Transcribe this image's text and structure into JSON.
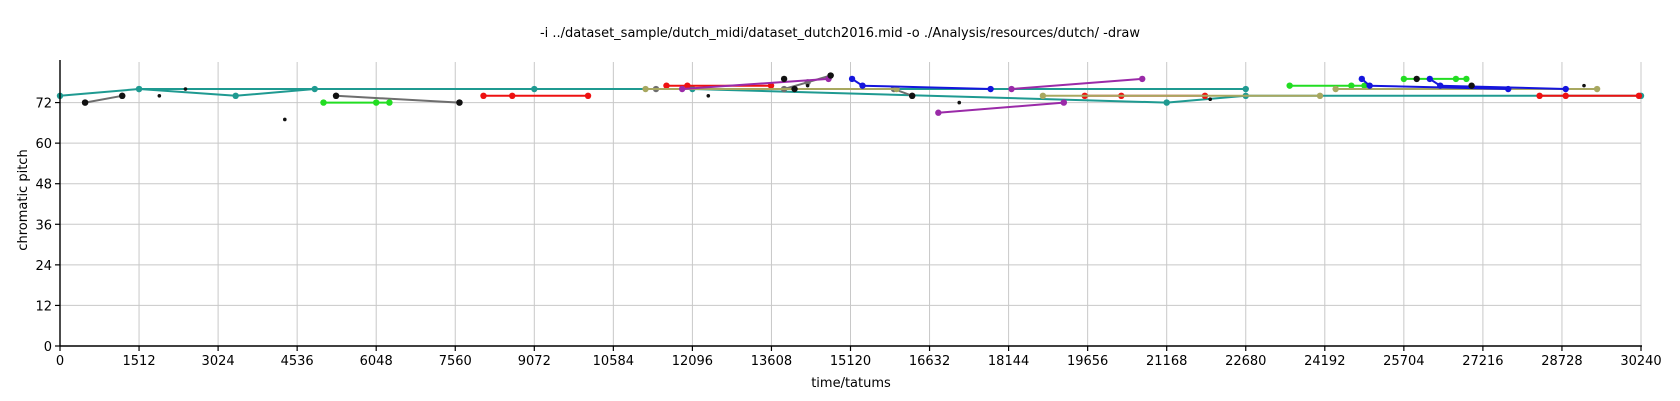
{
  "chart_data": {
    "type": "line",
    "title": "-i ../dataset_sample/dutch_midi/dataset_dutch2016.mid -o ./Analysis/resources/dutch/ -draw",
    "xlabel": "time/tatums",
    "ylabel": "chromatic pitch",
    "xlim": [
      0,
      30240
    ],
    "ylim": [
      0,
      84
    ],
    "x_ticks": [
      0,
      1512,
      3024,
      4536,
      6048,
      7560,
      9072,
      10584,
      12096,
      13608,
      15120,
      16632,
      18144,
      19656,
      21168,
      22680,
      24192,
      25704,
      27216,
      28728,
      30240
    ],
    "y_ticks": [
      0,
      12,
      24,
      36,
      48,
      60,
      72
    ],
    "grid": true,
    "legend": "none",
    "series": [
      {
        "color": "#1f9a91",
        "points": [
          [
            0,
            74
          ],
          [
            1512,
            76
          ],
          [
            3360,
            74
          ],
          [
            4872,
            76
          ],
          [
            9072,
            76
          ],
          [
            12096,
            76
          ],
          [
            21168,
            72
          ],
          [
            22680,
            74
          ],
          [
            30240,
            74
          ]
        ]
      },
      {
        "color": "#1f9a91",
        "points": [
          [
            1512,
            76
          ],
          [
            22680,
            76
          ]
        ]
      },
      {
        "color": "#6e6e6e",
        "points": [
          [
            480,
            72
          ],
          [
            1190,
            74
          ]
        ]
      },
      {
        "color": "#6e6e6e",
        "points": [
          [
            5280,
            74
          ],
          [
            7640,
            72
          ]
        ]
      },
      {
        "color": "#6e6e6e",
        "points": [
          [
            13850,
            76
          ],
          [
            14300,
            78
          ],
          [
            14740,
            80
          ]
        ]
      },
      {
        "color": "#6e6e6e",
        "points": [
          [
            11400,
            76
          ],
          [
            15950,
            76
          ],
          [
            16300,
            74
          ]
        ]
      },
      {
        "color": "#22dd22",
        "points": [
          [
            5040,
            72
          ],
          [
            6048,
            72
          ],
          [
            6300,
            72
          ]
        ]
      },
      {
        "color": "#22dd22",
        "points": [
          [
            23520,
            77
          ],
          [
            24700,
            77
          ],
          [
            24950,
            77
          ]
        ]
      },
      {
        "color": "#22dd22",
        "points": [
          [
            25704,
            79
          ],
          [
            26700,
            79
          ],
          [
            26900,
            79
          ]
        ]
      },
      {
        "color": "#ee1111",
        "points": [
          [
            8100,
            74
          ],
          [
            8650,
            74
          ],
          [
            10100,
            74
          ]
        ]
      },
      {
        "color": "#ee1111",
        "points": [
          [
            11600,
            77
          ],
          [
            12000,
            77
          ],
          [
            13600,
            77
          ]
        ]
      },
      {
        "color": "#ee1111",
        "points": [
          [
            19600,
            74
          ],
          [
            20300,
            74
          ],
          [
            21900,
            74
          ]
        ]
      },
      {
        "color": "#ee1111",
        "points": [
          [
            28300,
            74
          ],
          [
            28800,
            74
          ],
          [
            30200,
            74
          ]
        ]
      },
      {
        "color": "#a8a860",
        "points": [
          [
            11200,
            76
          ],
          [
            16000,
            76
          ]
        ]
      },
      {
        "color": "#a8a860",
        "points": [
          [
            18800,
            74
          ],
          [
            24100,
            74
          ]
        ]
      },
      {
        "color": "#a8a860",
        "points": [
          [
            24400,
            76
          ],
          [
            29400,
            76
          ]
        ]
      },
      {
        "color": "#9a2aa8",
        "points": [
          [
            11900,
            76
          ],
          [
            14700,
            79
          ]
        ]
      },
      {
        "color": "#9a2aa8",
        "points": [
          [
            16800,
            69
          ],
          [
            19200,
            72
          ]
        ]
      },
      {
        "color": "#9a2aa8",
        "points": [
          [
            18200,
            76
          ],
          [
            20700,
            79
          ]
        ]
      },
      {
        "color": "#1515dd",
        "points": [
          [
            15150,
            79
          ],
          [
            15350,
            77
          ],
          [
            17800,
            76
          ]
        ]
      },
      {
        "color": "#1515dd",
        "points": [
          [
            24900,
            79
          ],
          [
            25050,
            77
          ],
          [
            27700,
            76
          ]
        ]
      },
      {
        "color": "#1515dd",
        "points": [
          [
            26200,
            79
          ],
          [
            26400,
            77
          ],
          [
            28800,
            76
          ]
        ]
      }
    ],
    "markers": [
      {
        "color": "#111111",
        "x": 480,
        "y": 72,
        "size": "large"
      },
      {
        "color": "#111111",
        "x": 1190,
        "y": 74,
        "size": "large"
      },
      {
        "color": "#111111",
        "x": 1900,
        "y": 74,
        "size": "small"
      },
      {
        "color": "#111111",
        "x": 2400,
        "y": 76,
        "size": "small"
      },
      {
        "color": "#111111",
        "x": 4300,
        "y": 67,
        "size": "small"
      },
      {
        "color": "#111111",
        "x": 5280,
        "y": 74,
        "size": "large"
      },
      {
        "color": "#111111",
        "x": 7640,
        "y": 72,
        "size": "large"
      },
      {
        "color": "#111111",
        "x": 12400,
        "y": 74,
        "size": "small"
      },
      {
        "color": "#111111",
        "x": 13850,
        "y": 79,
        "size": "large"
      },
      {
        "color": "#111111",
        "x": 14050,
        "y": 76,
        "size": "large"
      },
      {
        "color": "#111111",
        "x": 14300,
        "y": 77,
        "size": "small"
      },
      {
        "color": "#111111",
        "x": 14740,
        "y": 80,
        "size": "large"
      },
      {
        "color": "#111111",
        "x": 16300,
        "y": 74,
        "size": "large"
      },
      {
        "color": "#111111",
        "x": 17200,
        "y": 72,
        "size": "small"
      },
      {
        "color": "#111111",
        "x": 22000,
        "y": 73,
        "size": "small"
      },
      {
        "color": "#111111",
        "x": 25950,
        "y": 79,
        "size": "large"
      },
      {
        "color": "#111111",
        "x": 27000,
        "y": 77,
        "size": "large"
      },
      {
        "color": "#111111",
        "x": 29150,
        "y": 77,
        "size": "small"
      }
    ]
  }
}
